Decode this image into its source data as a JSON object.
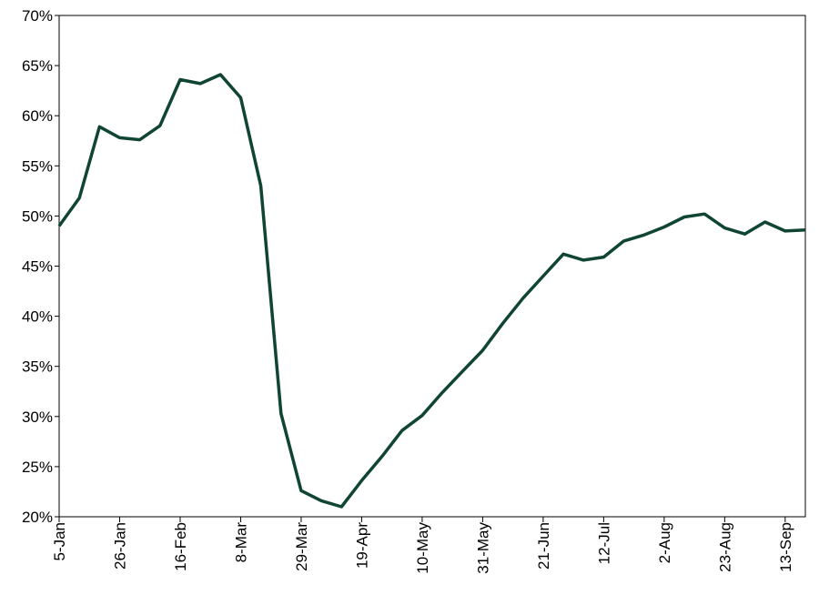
{
  "chart_data": {
    "type": "line",
    "title": "",
    "xlabel": "",
    "ylabel": "",
    "x_tick_labels": [
      "5-Jan",
      "26-Jan",
      "16-Feb",
      "8-Mar",
      "29-Mar",
      "19-Apr",
      "10-May",
      "31-May",
      "21-Jun",
      "12-Jul",
      "2-Aug",
      "23-Aug",
      "13-Sep"
    ],
    "y_tick_labels": [
      "20%",
      "25%",
      "30%",
      "35%",
      "40%",
      "45%",
      "50%",
      "55%",
      "60%",
      "65%",
      "70%"
    ],
    "ylim": [
      20,
      70
    ],
    "grid": false,
    "legend": "none",
    "series": [
      {
        "color": "#0f4532",
        "x": [
          "5-Jan",
          "12-Jan",
          "19-Jan",
          "26-Jan",
          "2-Feb",
          "9-Feb",
          "16-Feb",
          "23-Feb",
          "1-Mar",
          "8-Mar",
          "15-Mar",
          "22-Mar",
          "29-Mar",
          "5-Apr",
          "12-Apr",
          "19-Apr",
          "26-Apr",
          "3-May",
          "10-May",
          "17-May",
          "24-May",
          "31-May",
          "7-Jun",
          "14-Jun",
          "21-Jun",
          "28-Jun",
          "5-Jul",
          "12-Jul",
          "19-Jul",
          "26-Jul",
          "2-Aug",
          "9-Aug",
          "16-Aug",
          "23-Aug",
          "30-Aug",
          "6-Sep",
          "13-Sep",
          "20-Sep"
        ],
        "values": [
          49.0,
          51.8,
          58.9,
          57.8,
          57.6,
          59.0,
          63.6,
          63.2,
          64.1,
          61.8,
          53.0,
          30.3,
          22.6,
          21.6,
          21.0,
          23.6,
          26.0,
          28.6,
          30.1,
          32.4,
          34.5,
          36.6,
          39.3,
          41.8,
          44.0,
          46.2,
          45.6,
          45.9,
          47.5,
          48.1,
          48.9,
          49.9,
          50.2,
          48.8,
          48.2,
          49.4,
          48.5,
          48.6
        ]
      }
    ]
  }
}
